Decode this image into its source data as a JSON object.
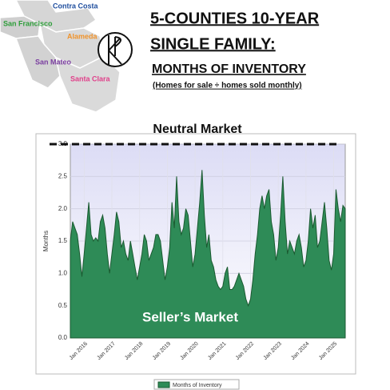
{
  "map_labels": [
    "Contra Costa",
    "San Francisco",
    "Alameda",
    "San Mateo",
    "Santa Clara"
  ],
  "chart_data": {
    "type": "area",
    "title": [
      "5-COUNTIES 10-YEAR",
      "SINGLE FAMILY:",
      "MONTHS OF INVENTORY"
    ],
    "subtitle": "(Homes for sale ÷ homes sold monthly)",
    "ylabel": "Months",
    "annotations": [
      "Neutral Market",
      "Seller’s Market"
    ],
    "reference_line": 3,
    "categories": [
      null,
      null,
      null,
      null,
      null,
      null,
      "Jan 2016",
      null,
      null,
      null,
      null,
      null,
      null,
      null,
      null,
      null,
      null,
      null,
      "Jan 2017",
      null,
      null,
      null,
      null,
      null,
      null,
      null,
      null,
      null,
      null,
      null,
      "Jan 2018",
      null,
      null,
      null,
      null,
      null,
      null,
      null,
      null,
      null,
      null,
      null,
      "Jan 2019",
      null,
      null,
      null,
      null,
      null,
      null,
      null,
      null,
      null,
      null,
      null,
      "Jan 2020",
      null,
      null,
      null,
      null,
      null,
      null,
      null,
      null,
      null,
      null,
      null,
      "Jan 2021",
      null,
      null,
      null,
      null,
      null,
      null,
      null,
      null,
      null,
      null,
      null,
      "Jan 2022",
      null,
      null,
      null,
      null,
      null,
      null,
      null,
      null,
      null,
      null,
      null,
      "Jan 2023",
      null,
      null,
      null,
      null,
      null,
      null,
      null,
      null,
      null,
      null,
      null,
      "Jan 2024",
      null,
      null,
      null,
      null,
      null,
      null,
      null,
      null,
      null,
      null,
      null,
      "Jan 2025",
      null,
      null,
      null,
      null,
      null
    ],
    "series": [
      {
        "name": "Months of Inventory",
        "color": "#2e8b57",
        "values": [
          1.5,
          1.8,
          1.7,
          1.6,
          1.3,
          0.95,
          1.3,
          1.7,
          2.1,
          1.6,
          1.5,
          1.55,
          1.5,
          1.8,
          1.9,
          1.7,
          1.3,
          1.0,
          1.3,
          1.6,
          1.95,
          1.8,
          1.4,
          1.5,
          1.3,
          1.2,
          1.5,
          1.3,
          1.1,
          0.9,
          1.1,
          1.3,
          1.6,
          1.5,
          1.2,
          1.3,
          1.4,
          1.6,
          1.6,
          1.5,
          1.2,
          0.9,
          1.1,
          1.4,
          2.1,
          1.7,
          2.5,
          1.8,
          1.6,
          1.7,
          2.0,
          1.9,
          1.5,
          1.1,
          1.3,
          1.7,
          2.1,
          2.6,
          1.9,
          1.4,
          1.6,
          1.2,
          1.1,
          0.9,
          0.8,
          0.75,
          0.8,
          1.0,
          1.1,
          0.75,
          0.75,
          0.8,
          0.9,
          1.0,
          0.9,
          0.8,
          0.6,
          0.5,
          0.6,
          0.9,
          1.3,
          1.6,
          2.0,
          2.2,
          2.0,
          2.2,
          2.3,
          1.8,
          1.6,
          1.2,
          1.4,
          1.9,
          2.5,
          1.8,
          1.3,
          1.5,
          1.4,
          1.3,
          1.5,
          1.6,
          1.4,
          1.1,
          1.2,
          1.5,
          2.0,
          1.7,
          1.9,
          1.4,
          1.5,
          1.8,
          2.1,
          1.7,
          1.2,
          1.05,
          1.3,
          2.3,
          2.0,
          1.8,
          2.05,
          2.0
        ]
      }
    ],
    "ylim": [
      0,
      3
    ],
    "yticks": [
      {
        "value": 0,
        "label": "0.0"
      },
      {
        "value": 0.5,
        "label": "0.5"
      },
      {
        "value": 1,
        "label": "1.0"
      },
      {
        "value": 1.5,
        "label": "1.5"
      },
      {
        "value": 2,
        "label": "2.0"
      },
      {
        "value": 2.5,
        "label": "2.5"
      },
      {
        "value": 3,
        "label": "3.0"
      }
    ],
    "grid": true
  }
}
